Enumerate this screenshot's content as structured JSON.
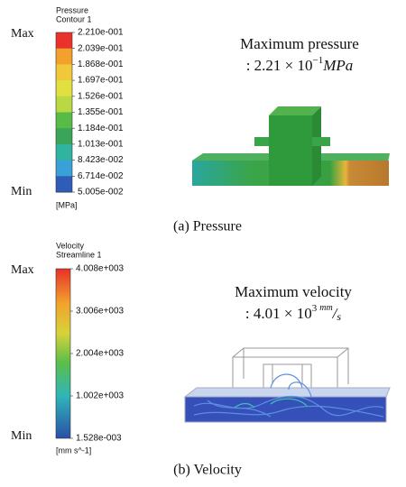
{
  "panels": [
    {
      "legend": {
        "title": "Pressure",
        "subtitle": "Contour 1",
        "max": "Max",
        "min": "Min",
        "unit": "[MPa]",
        "ticks": [
          "2.210e-001",
          "2.039e-001",
          "1.868e-001",
          "1.697e-001",
          "1.526e-001",
          "1.355e-001",
          "1.184e-001",
          "1.013e-001",
          "8.423e-002",
          "6.714e-002",
          "5.005e-002"
        ]
      },
      "annotation": {
        "title": "Maximum pressure",
        "prefix": ": 2.21 × 10",
        "exponent": "−1",
        "unit": "MPa"
      },
      "caption": "(a) Pressure"
    },
    {
      "legend": {
        "title": "Velocity",
        "subtitle": "Streamline 1",
        "max": "Max",
        "min": "Min",
        "unit": "[mm s^-1]",
        "ticks": [
          "4.008e+003",
          "3.006e+003",
          "2.004e+003",
          "1.002e+003",
          "1.528e-003"
        ]
      },
      "annotation": {
        "title": "Maximum velocity",
        "prefix": ": 4.01 × 10",
        "exponent": "3",
        "unit_numerator": "mm",
        "unit_denominator": "s"
      },
      "caption": "(b) Velocity"
    }
  ]
}
